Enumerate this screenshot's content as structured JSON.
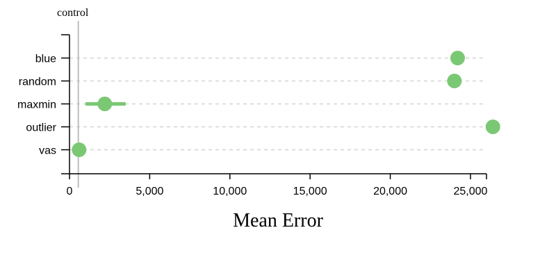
{
  "chart_data": {
    "type": "scatter",
    "xlabel": "Mean Error",
    "ylabel": "",
    "xlim": [
      0,
      26000
    ],
    "x_ticks": [
      0,
      5000,
      10000,
      15000,
      20000,
      25000
    ],
    "x_tick_labels": [
      "0",
      "5,000",
      "10,000",
      "15,000",
      "20,000",
      "25,000"
    ],
    "grid": "horizontal dashed per category",
    "categories": [
      "blue",
      "random",
      "maxmin",
      "outlier",
      "vas"
    ],
    "points": [
      {
        "category": "blue",
        "x": 24200,
        "ci": [
          24200,
          24200
        ]
      },
      {
        "category": "random",
        "x": 24000,
        "ci": [
          24000,
          24000
        ]
      },
      {
        "category": "maxmin",
        "x": 2200,
        "ci": [
          1000,
          3500
        ]
      },
      {
        "category": "outlier",
        "x": 26400,
        "ci": [
          26400,
          26400
        ]
      },
      {
        "category": "vas",
        "x": 600,
        "ci": [
          600,
          600
        ]
      }
    ],
    "reference_line": {
      "label": "control",
      "x": 550
    },
    "colors": {
      "point": "#7ac873",
      "grid": "#d3d3d3",
      "reference": "#bdbdbd",
      "axis": "#000000"
    }
  }
}
